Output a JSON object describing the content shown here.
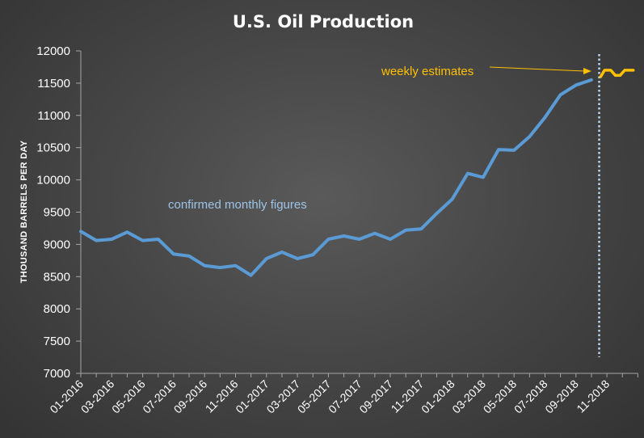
{
  "chart_data": {
    "type": "line",
    "title": "U.S. Oil Production",
    "ylabel": "THOUSAND BARRELS PER DAY",
    "xlabel": "",
    "ylim": [
      7000,
      12000
    ],
    "yticks": [
      7000,
      7500,
      8000,
      8500,
      9000,
      9500,
      10000,
      10500,
      11000,
      11500,
      12000
    ],
    "xticks": [
      "01-2016",
      "03-2016",
      "05-2016",
      "07-2016",
      "09-2016",
      "11-2016",
      "01-2017",
      "03-2017",
      "05-2017",
      "07-2017",
      "09-2017",
      "11-2017",
      "01-2018",
      "03-2018",
      "05-2018",
      "07-2018",
      "09-2018",
      "11-2018"
    ],
    "grid": false,
    "series": [
      {
        "color": "#5b9bd5",
        "x": [
          "01-2016",
          "02-2016",
          "03-2016",
          "04-2016",
          "05-2016",
          "06-2016",
          "07-2016",
          "08-2016",
          "09-2016",
          "10-2016",
          "11-2016",
          "12-2016",
          "01-2017",
          "02-2017",
          "03-2017",
          "04-2017",
          "05-2017",
          "06-2017",
          "07-2017",
          "08-2017",
          "09-2017",
          "10-2017",
          "11-2017",
          "12-2017",
          "01-2018",
          "02-2018",
          "03-2018",
          "04-2018",
          "05-2018",
          "06-2018",
          "07-2018",
          "08-2018",
          "09-2018",
          "10-2018"
        ],
        "values": [
          9200,
          9060,
          9080,
          9190,
          9060,
          9080,
          8850,
          8820,
          8670,
          8640,
          8670,
          8520,
          8780,
          8880,
          8780,
          8840,
          9080,
          9130,
          9080,
          9170,
          9080,
          9220,
          9240,
          9480,
          9700,
          10100,
          10040,
          10470,
          10460,
          10670,
          10970,
          11320,
          11470,
          11550
        ]
      },
      {
        "color": "#ffc000",
        "x": [
          "10-2018",
          "10-2018",
          "11-2018",
          "11-2018",
          "11-2018",
          "12-2018",
          "12-2018"
        ],
        "values": [
          11600,
          11700,
          11700,
          11620,
          11620,
          11700,
          11700
        ]
      }
    ],
    "annotations": [
      {
        "text": "confirmed monthly figures",
        "color": "#9dc3e6"
      },
      {
        "text": "weekly estimates",
        "color": "#ffc000"
      }
    ],
    "divider_line_color": "#bdd7ee",
    "axis_color": "#a6a6a6"
  }
}
